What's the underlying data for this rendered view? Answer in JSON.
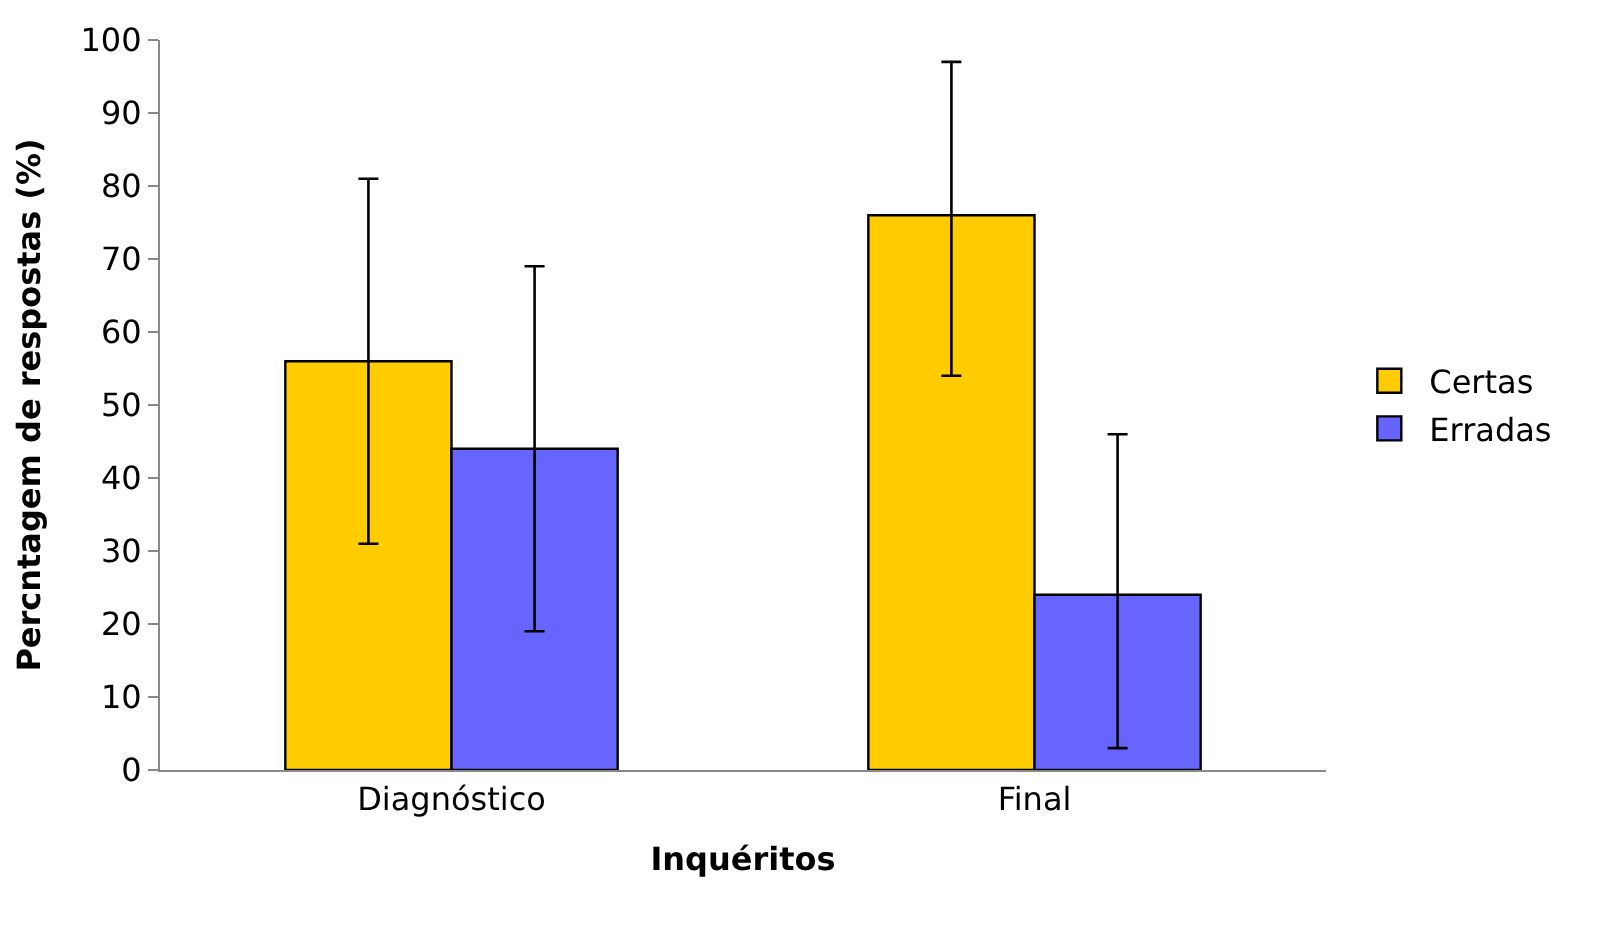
{
  "chart_data": {
    "type": "bar",
    "xlabel": "Inquéritos",
    "ylabel": "Percntagem de respostas (%)",
    "categories": [
      "Diagnóstico",
      "Final"
    ],
    "series": [
      {
        "name": "Certas",
        "color": "#ffcc00",
        "values": [
          56,
          76
        ],
        "errors": [
          [
            31,
            81
          ],
          [
            54,
            97
          ]
        ]
      },
      {
        "name": "Erradas",
        "color": "#6666ff",
        "values": [
          44,
          24
        ],
        "errors": [
          [
            19,
            69
          ],
          [
            3,
            46
          ]
        ]
      }
    ],
    "ylim": [
      0,
      100
    ],
    "yticks": [
      0,
      10,
      20,
      30,
      40,
      50,
      60,
      70,
      80,
      90,
      100
    ],
    "legend": "right"
  }
}
